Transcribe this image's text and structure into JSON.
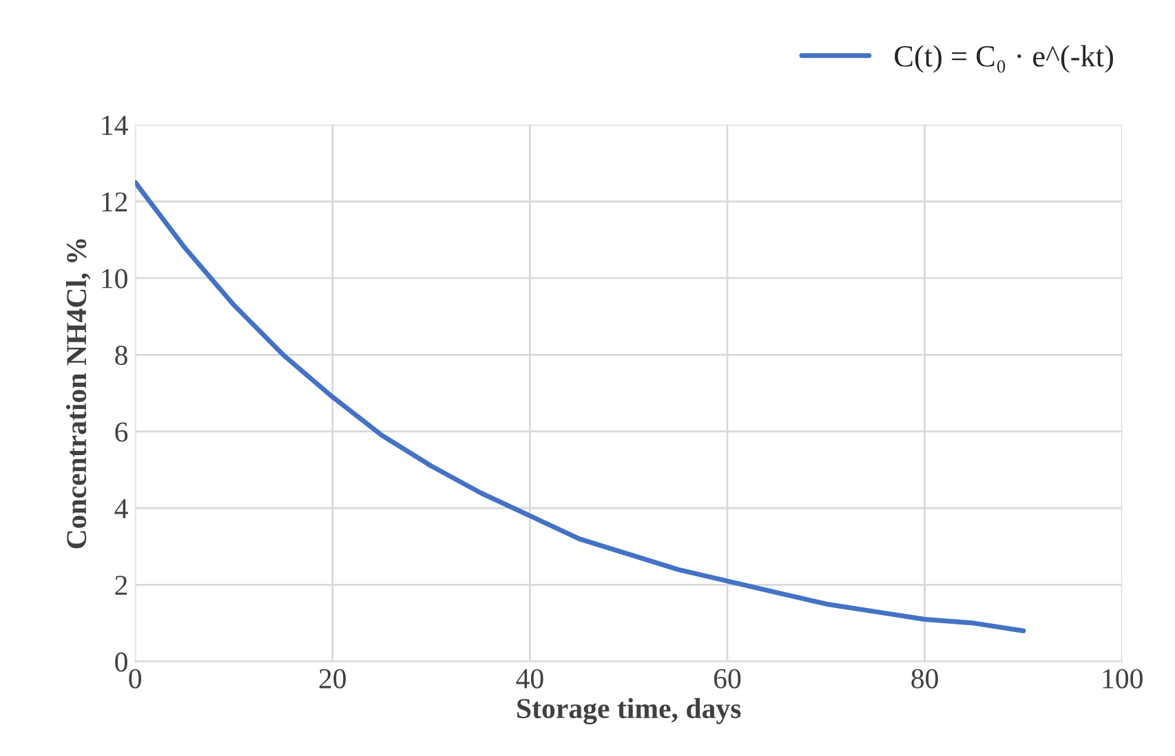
{
  "chart_data": {
    "type": "line",
    "xlabel": "Storage time, days",
    "ylabel": "Concentration NH4Cl, %",
    "x": [
      0,
      5,
      10,
      15,
      20,
      25,
      30,
      35,
      40,
      45,
      50,
      55,
      60,
      65,
      70,
      75,
      80,
      85,
      90
    ],
    "series": [
      {
        "name": "C(t) = C₀ · e^(-kt)",
        "color": "#4472c4",
        "values": [
          12.5,
          10.8,
          9.3,
          8.0,
          6.9,
          5.9,
          5.1,
          4.4,
          3.8,
          3.2,
          2.8,
          2.4,
          2.1,
          1.8,
          1.5,
          1.3,
          1.1,
          1.0,
          0.8
        ]
      }
    ],
    "xlim": [
      0,
      100
    ],
    "xticks": [
      0,
      20,
      40,
      60,
      80,
      100
    ],
    "ylim": [
      0,
      14
    ],
    "yticks": [
      0,
      2,
      4,
      6,
      8,
      10,
      12,
      14
    ],
    "grid": true,
    "legend": "top right",
    "marker": "none",
    "line_style": "solid"
  }
}
